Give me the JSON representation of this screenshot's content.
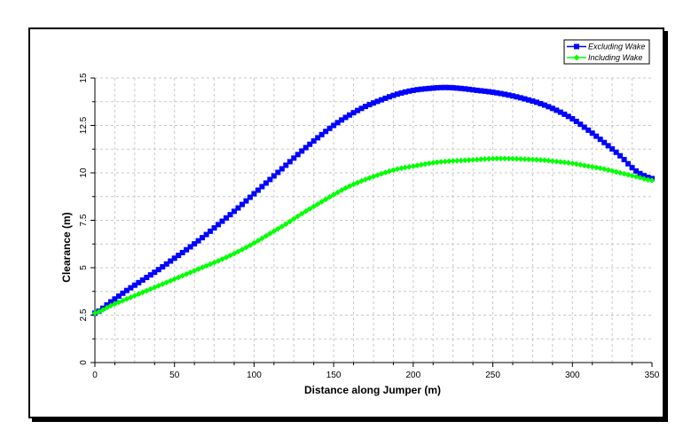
{
  "chart_data": {
    "type": "line",
    "xlabel": "Distance along Jumper (m)",
    "ylabel": "Clearance (m)",
    "xlim": [
      0,
      350
    ],
    "ylim": [
      0,
      15
    ],
    "xticks": [
      "0",
      "50",
      "100",
      "150",
      "200",
      "250",
      "300",
      "350"
    ],
    "yticks": [
      "0",
      "2.5",
      "5",
      "7.5",
      "10",
      "12.5",
      "15"
    ],
    "grid": true,
    "legend_position": "top-right",
    "series": [
      {
        "name": "Excluding Wake",
        "color": "#0000ff",
        "marker": "square",
        "x": [
          0,
          10,
          20,
          30,
          40,
          50,
          60,
          70,
          80,
          90,
          100,
          110,
          120,
          130,
          140,
          150,
          160,
          170,
          180,
          190,
          200,
          210,
          220,
          230,
          240,
          250,
          260,
          270,
          280,
          290,
          300,
          310,
          320,
          330,
          340,
          350
        ],
        "y": [
          2.6,
          3.2,
          3.8,
          4.35,
          4.9,
          5.5,
          6.1,
          6.75,
          7.45,
          8.15,
          8.9,
          9.65,
          10.4,
          11.15,
          11.85,
          12.5,
          13.05,
          13.5,
          13.85,
          14.15,
          14.35,
          14.45,
          14.5,
          14.45,
          14.35,
          14.25,
          14.1,
          13.9,
          13.65,
          13.3,
          12.85,
          12.25,
          11.6,
          10.9,
          10.1,
          9.7
        ]
      },
      {
        "name": "Including Wake",
        "color": "#00ff00",
        "marker": "diamond",
        "x": [
          0,
          10,
          20,
          30,
          40,
          50,
          60,
          70,
          80,
          90,
          100,
          110,
          120,
          130,
          140,
          150,
          160,
          170,
          180,
          190,
          200,
          210,
          220,
          230,
          240,
          250,
          260,
          270,
          280,
          290,
          300,
          310,
          320,
          330,
          340,
          350
        ],
        "y": [
          2.6,
          3.0,
          3.35,
          3.7,
          4.05,
          4.4,
          4.75,
          5.1,
          5.45,
          5.85,
          6.3,
          6.8,
          7.3,
          7.85,
          8.35,
          8.85,
          9.3,
          9.65,
          9.95,
          10.2,
          10.35,
          10.5,
          10.6,
          10.65,
          10.7,
          10.75,
          10.75,
          10.72,
          10.68,
          10.6,
          10.5,
          10.35,
          10.2,
          10.0,
          9.8,
          9.6
        ]
      }
    ]
  }
}
